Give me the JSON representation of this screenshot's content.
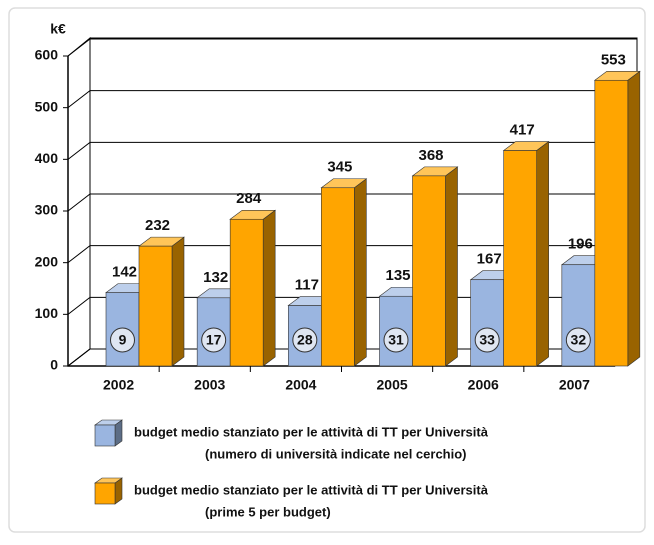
{
  "chart_data": {
    "type": "bar3d",
    "y_label": "k€",
    "categories": [
      "2002",
      "2003",
      "2004",
      "2005",
      "2006",
      "2007"
    ],
    "series": [
      {
        "name": "budget medio stanziato per le attività di TT per Università",
        "description": "(numero di università indicate nel cerchio)",
        "color": "#9ab5e0",
        "values": [
          142,
          132,
          117,
          135,
          167,
          196
        ],
        "circle_values": [
          9,
          17,
          28,
          31,
          33,
          32
        ]
      },
      {
        "name": "budget medio stanziato per le attività di TT per Università",
        "description": "(prime 5 per budget)",
        "color": "#ffa500",
        "values": [
          232,
          284,
          345,
          368,
          417,
          553
        ]
      }
    ],
    "ylim": [
      0,
      600
    ],
    "yticks": [
      0,
      100,
      200,
      300,
      400,
      500,
      600
    ],
    "grid": true
  }
}
